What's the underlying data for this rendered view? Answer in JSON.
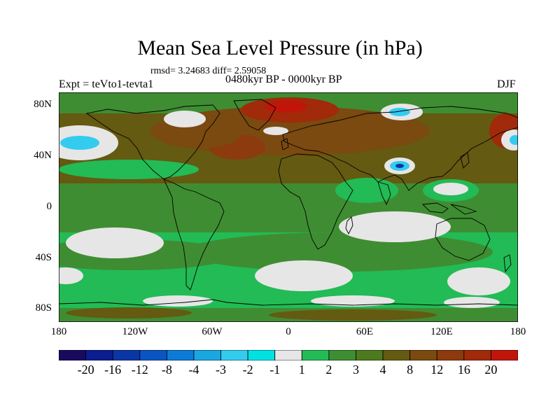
{
  "title": "Mean Sea Level Pressure (in hPa)",
  "stats": "rmsd= 3.24683 diff= 2.59058",
  "experiment": "Expt = teVto1-tevta1",
  "period": "0480kyr BP - 0000kyr BP",
  "season": "DJF",
  "lat_labels": [
    "80N",
    "40N",
    "0",
    "40S",
    "80S"
  ],
  "lon_labels": [
    "180",
    "120W",
    "60W",
    "0",
    "60E",
    "120E",
    "180"
  ],
  "colorbar": {
    "colors": [
      "#1a0a5e",
      "#0b1e8f",
      "#0a36a6",
      "#0a55c3",
      "#0d7ad6",
      "#1aa6e0",
      "#33ccef",
      "#00e2e2",
      "#e6e6e6",
      "#22bb55",
      "#3f8d32",
      "#4d7a1e",
      "#645a11",
      "#7a4a10",
      "#8c3a0e",
      "#a02a0a",
      "#c0160a"
    ],
    "labels": [
      "-20",
      "-16",
      "-12",
      "-8",
      "-4",
      "-3",
      "-2",
      "-1",
      "1",
      "2",
      "3",
      "4",
      "8",
      "12",
      "16",
      "20"
    ]
  }
}
